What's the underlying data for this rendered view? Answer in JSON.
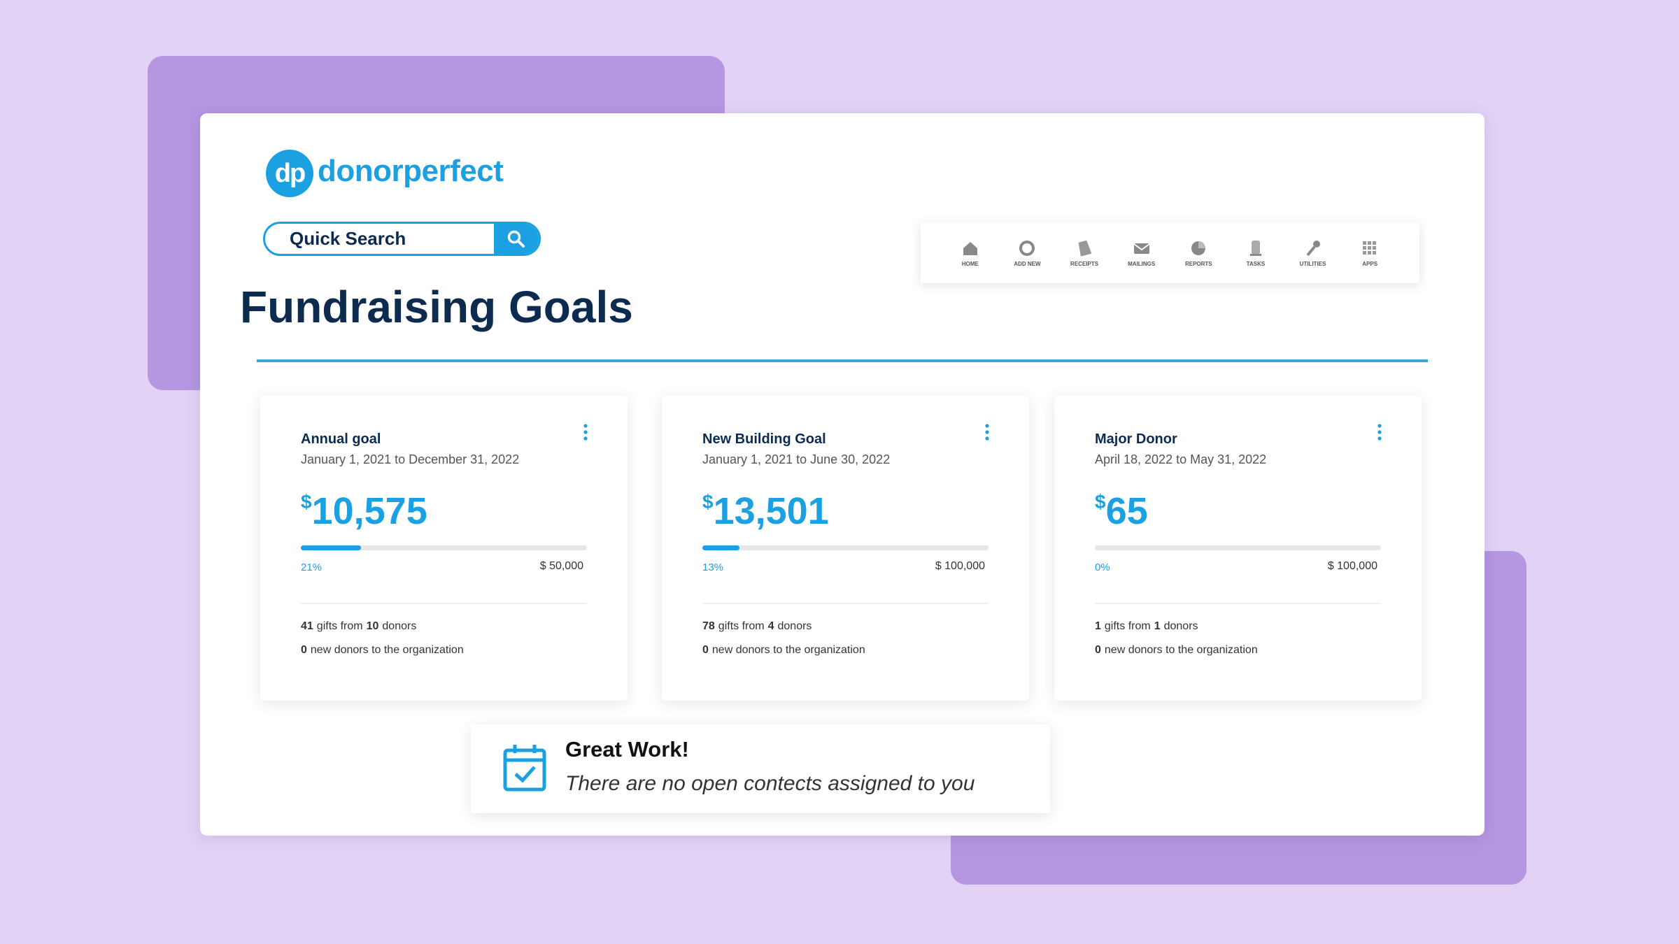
{
  "logo": {
    "mark": "dp",
    "name": "donorperfect"
  },
  "search": {
    "placeholder": "Quick Search"
  },
  "nav": [
    "HOME",
    "ADD NEW",
    "RECEIPTS",
    "MAILINGS",
    "REPORTS",
    "TASKS",
    "UTILITIES",
    "APPS"
  ],
  "page_title": "Fundraising Goals",
  "goals": [
    {
      "title": "Annual goal",
      "dates": "January 1, 2021 to December 31, 2022",
      "currency": "$",
      "amount": "10,575",
      "progress": {
        "value": 21,
        "label": "21%"
      },
      "target": "$ 50,000",
      "gifts_line": [
        "41",
        "gifts from",
        "10",
        "donors"
      ],
      "new_donors_line": [
        "0",
        "new donors to the organization"
      ]
    },
    {
      "title": "New Building Goal",
      "dates": "January 1, 2021 to June 30, 2022",
      "currency": "$",
      "amount": "13,501",
      "progress": {
        "value": 13,
        "label": "13%"
      },
      "target": "$ 100,000",
      "gifts_line": [
        "78",
        "gifts from",
        "4",
        "donors"
      ],
      "new_donors_line": [
        "0",
        "new donors to the organization"
      ]
    },
    {
      "title": "Major Donor",
      "dates": "April 18, 2022 to May 31, 2022",
      "currency": "$",
      "amount": "65",
      "progress": {
        "value": 0,
        "label": "0%"
      },
      "target": "$ 100,000",
      "gifts_line": [
        "1",
        "gifts from",
        "1",
        "donors"
      ],
      "new_donors_line": [
        "0",
        "new donors to the organization"
      ]
    }
  ],
  "notice": {
    "title": "Great Work!",
    "message": "There are no open contects assigned to you"
  }
}
